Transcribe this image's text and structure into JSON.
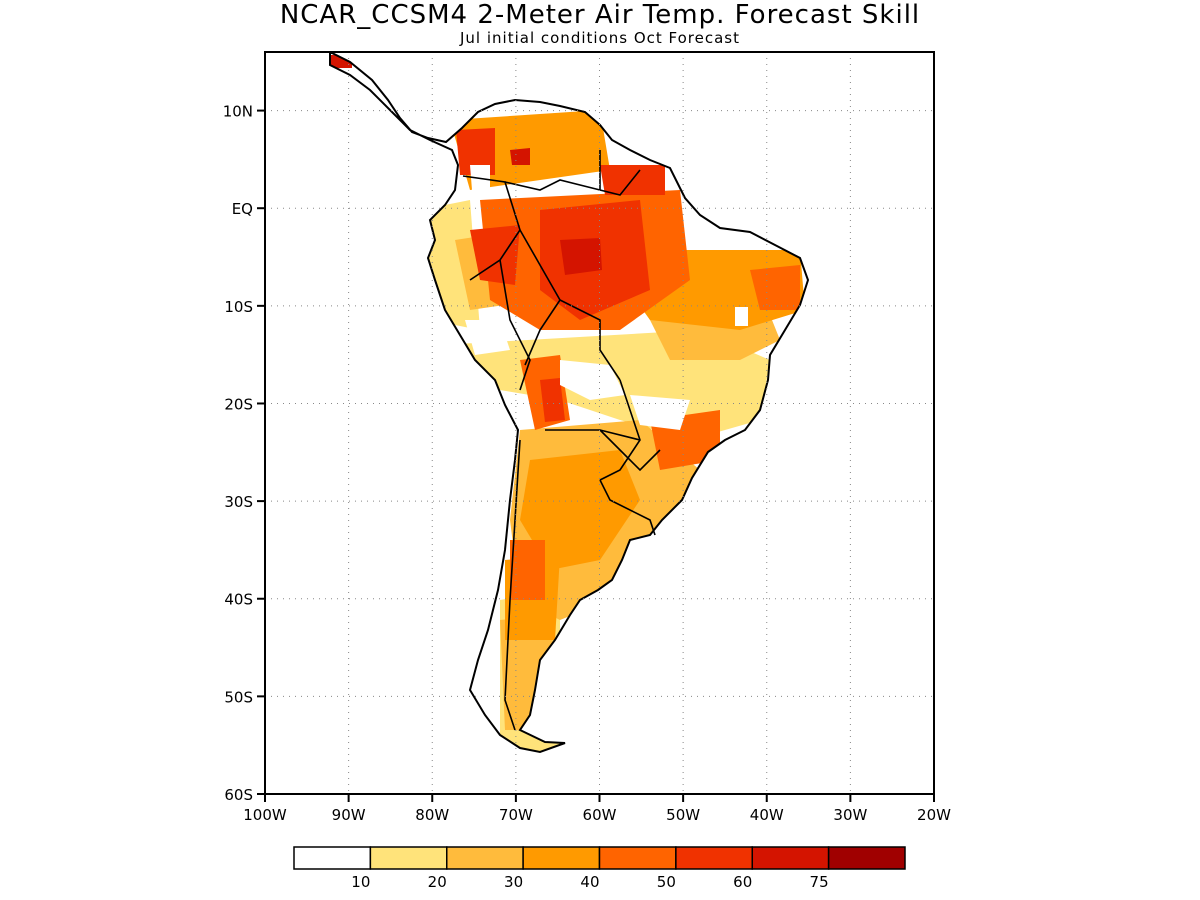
{
  "title": "NCAR_CCSM4 2-Meter Air Temp. Forecast Skill",
  "subtitle": "Jul initial conditions  Oct Forecast",
  "map": {
    "lon_range": [
      -100,
      -20
    ],
    "lat_range": [
      -60,
      16
    ],
    "y_ticks": [
      {
        "lat": 10,
        "label": "10N"
      },
      {
        "lat": 0,
        "label": "EQ"
      },
      {
        "lat": -10,
        "label": "10S"
      },
      {
        "lat": -20,
        "label": "20S"
      },
      {
        "lat": -30,
        "label": "30S"
      },
      {
        "lat": -40,
        "label": "40S"
      },
      {
        "lat": -50,
        "label": "50S"
      },
      {
        "lat": -60,
        "label": "60S"
      }
    ],
    "x_ticks": [
      {
        "lon": -100,
        "label": "100W"
      },
      {
        "lon": -90,
        "label": "90W"
      },
      {
        "lon": -80,
        "label": "80W"
      },
      {
        "lon": -70,
        "label": "70W"
      },
      {
        "lon": -60,
        "label": "60W"
      },
      {
        "lon": -50,
        "label": "50W"
      },
      {
        "lon": -40,
        "label": "40W"
      },
      {
        "lon": -30,
        "label": "30W"
      },
      {
        "lon": -20,
        "label": "20W"
      }
    ]
  },
  "colorbar": {
    "levels": [
      "10",
      "20",
      "30",
      "40",
      "50",
      "60",
      "75"
    ],
    "colors": [
      "#ffffff",
      "#ffe37a",
      "#ffbb3c",
      "#ff9a00",
      "#ff6400",
      "#f03200",
      "#d41400",
      "#a00000"
    ]
  }
}
